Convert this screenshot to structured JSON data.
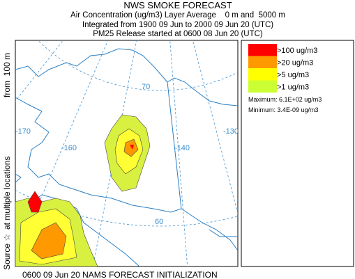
{
  "header": {
    "title": "NWS SMOKE FORECAST",
    "lines": [
      "Air Concentration (ug/m3) Layer Average    0 m and  5000 m",
      "Integrated from 1900 09 Jun to 2000 09 Jun 20 (UTC)",
      "PM25 Release started at 0600 08 Jun 20 (UTC)"
    ]
  },
  "side_labels": [
    "Source ☆",
    "at multiple locations",
    "from  100 m"
  ],
  "map": {
    "graticule_labels": [
      "-170",
      "-160",
      "-140",
      "-130",
      "70",
      "60"
    ]
  },
  "legend": {
    "items": [
      {
        "label": ">100 ug/m3",
        "color": "#ff0000"
      },
      {
        "label": ">20 ug/m3",
        "color": "#ff9900"
      },
      {
        "label": ">5 ug/m3",
        "color": "#ffff00"
      },
      {
        "label": ">1 ug/m3",
        "color": "#ccff33"
      }
    ],
    "maximum": "Maximum: 6.1E+02 ug/m3",
    "minimum": "Minimum: 3.4E-09 ug/m3"
  },
  "footer": "0600 09 Jun 20 NAMS FORECAST INITIALIZATION"
}
